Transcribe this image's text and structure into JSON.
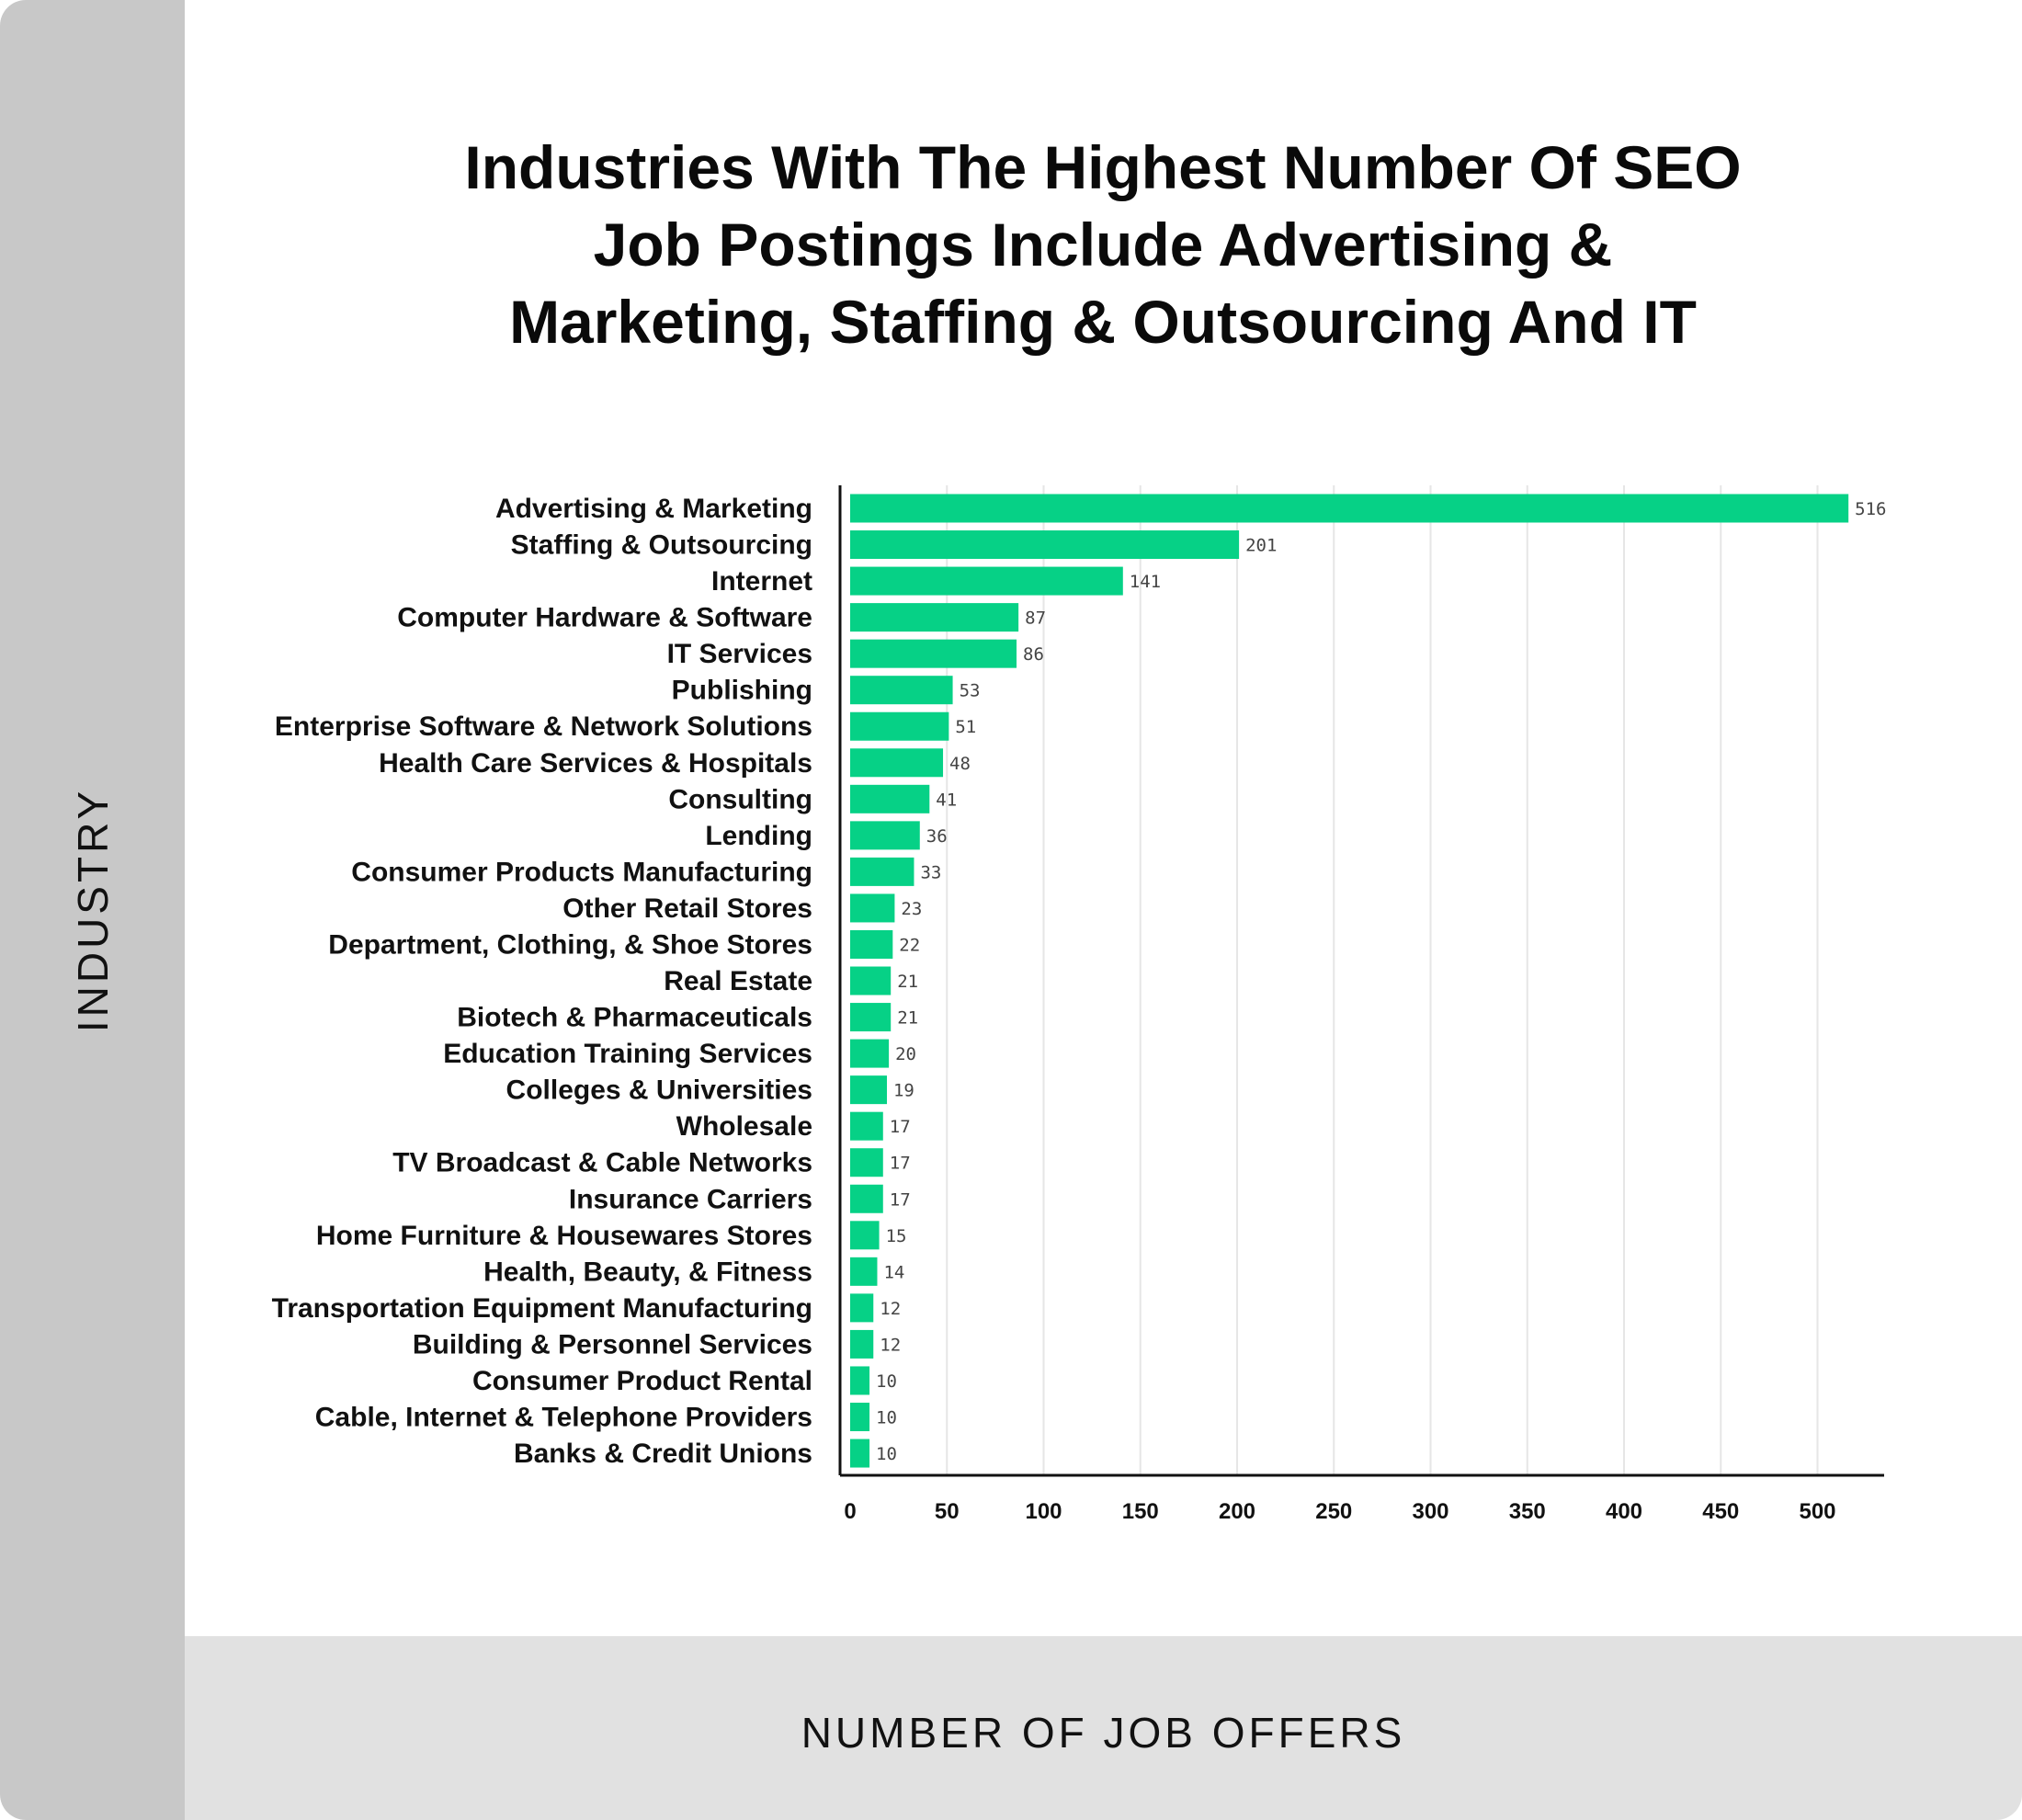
{
  "title": "Industries With The Highest Number Of SEO\nJob Postings Include Advertising &\nMarketing, Staffing & Outsourcing And IT",
  "colors": {
    "bar": "#06d186",
    "ylabel_panel": "#c8c8c8",
    "xlabel_panel": "#e1e1e1",
    "grid": "#e6e6e6",
    "axis": "#111111"
  },
  "chart_data": {
    "type": "bar",
    "orientation": "horizontal",
    "title": "Industries With The Highest Number Of SEO Job Postings Include Advertising & Marketing, Staffing & Outsourcing And IT",
    "xlabel": "NUMBER OF JOB OFFERS",
    "ylabel": "INDUSTRY",
    "xlim": [
      0,
      535
    ],
    "xticks": [
      0,
      50,
      100,
      150,
      200,
      250,
      300,
      350,
      400,
      450,
      500
    ],
    "grid": "vertical",
    "categories": [
      "Advertising & Marketing",
      "Staffing & Outsourcing",
      "Internet",
      "Computer Hardware & Software",
      "IT Services",
      "Publishing",
      "Enterprise Software & Network Solutions",
      "Health Care Services & Hospitals",
      "Consulting",
      "Lending",
      "Consumer Products Manufacturing",
      "Other Retail Stores",
      "Department, Clothing, & Shoe Stores",
      "Real Estate",
      "Biotech & Pharmaceuticals",
      "Education Training Services",
      "Colleges & Universities",
      "Wholesale",
      "TV Broadcast & Cable Networks",
      "Insurance Carriers",
      "Home Furniture & Housewares Stores",
      "Health, Beauty, & Fitness",
      "Transportation Equipment Manufacturing",
      "Building & Personnel Services",
      "Consumer Product Rental",
      "Cable, Internet & Telephone Providers",
      "Banks & Credit Unions"
    ],
    "values": [
      516,
      201,
      141,
      87,
      86,
      53,
      51,
      48,
      41,
      36,
      33,
      23,
      22,
      21,
      21,
      20,
      19,
      17,
      17,
      17,
      15,
      14,
      12,
      12,
      10,
      10,
      10
    ]
  }
}
